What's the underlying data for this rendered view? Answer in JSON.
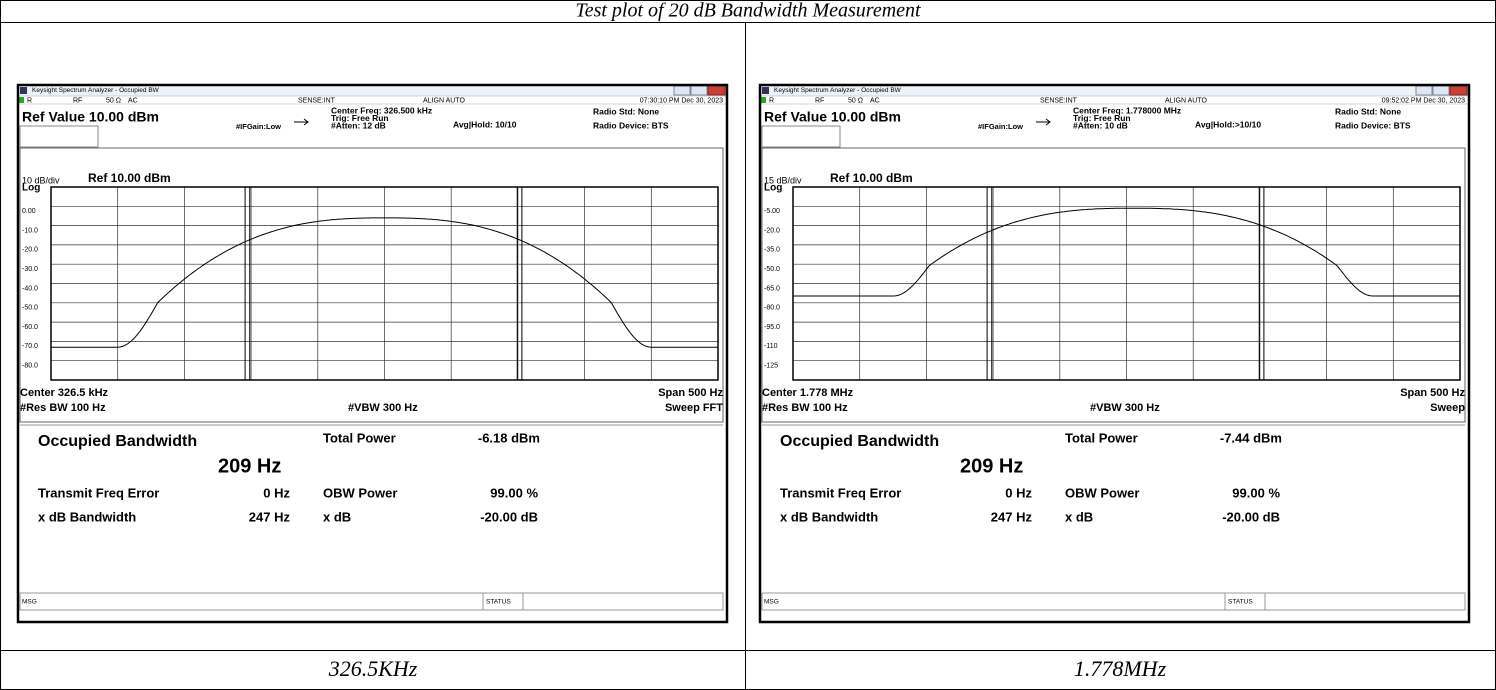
{
  "header": {
    "title": "Test plot of 20 dB Bandwidth Measurement"
  },
  "panels": [
    {
      "window_title": "Keysight Spectrum Analyzer - Occupied BW",
      "status": [
        "R",
        "RF",
        "50 Ω",
        "AC",
        "SENSE:INT",
        "ALIGN AUTO",
        "07:30:10 PM Dec 30, 2023"
      ],
      "ref_value": "Ref Value 10.00 dBm",
      "center_freq": "Center Freq: 326.500 kHz",
      "trig": "Trig: Free Run",
      "atten": "#Atten: 12 dB",
      "ifgain": "#IFGain:Low",
      "avg": "Avg|Hold: 10/10",
      "radio_std": "Radio Std: None",
      "radio_device": "Radio Device: BTS",
      "scale": "10 dB/div",
      "ref_level": "Ref 10.00 dBm",
      "log": "Log",
      "y_labels": [
        "0.00",
        "-10.0",
        "-20.0",
        "-30.0",
        "-40.0",
        "-50.0",
        "-60.0",
        "-70.0",
        "-80.0"
      ],
      "center": "Center 326.5 kHz",
      "span": "Span 500 Hz",
      "res_bw": "#Res BW 100 Hz",
      "vbw": "#VBW 300 Hz",
      "sweep": "Sweep FFT",
      "occupied_label": "Occupied Bandwidth",
      "occupied": "209 Hz",
      "total_power_label": "Total Power",
      "total_power": "-6.18 dBm",
      "tfe_label": "Transmit Freq Error",
      "tfe": "0 Hz",
      "obw_power_label": "OBW Power",
      "obw_power": "99.00 %",
      "xdb_bw_label": "x dB Bandwidth",
      "xdb_bw": "247 Hz",
      "xdb_label": "x dB",
      "xdb": "-20.00 dB",
      "msg": "MSG",
      "status_label": "STATUS"
    },
    {
      "window_title": "Keysight Spectrum Analyzer - Occupied BW",
      "status": [
        "R",
        "RF",
        "50 Ω",
        "AC",
        "SENSE:INT",
        "ALIGN AUTO",
        "09:52:02 PM Dec 30, 2023"
      ],
      "ref_value": "Ref Value 10.00 dBm",
      "center_freq": "Center Freq: 1.778000 MHz",
      "trig": "Trig: Free Run",
      "atten": "#Atten: 10 dB",
      "ifgain": "#IFGain:Low",
      "avg": "Avg|Hold:>10/10",
      "radio_std": "Radio Std: None",
      "radio_device": "Radio Device: BTS",
      "scale": "15 dB/div",
      "ref_level": "Ref 10.00 dBm",
      "log": "Log",
      "y_labels": [
        "-5.00",
        "-20.0",
        "-35.0",
        "-50.0",
        "-65.0",
        "-80.0",
        "-95.0",
        "-110",
        "-125"
      ],
      "center": "Center 1.778 MHz",
      "span": "Span 500 Hz",
      "res_bw": "#Res BW 100 Hz",
      "vbw": "#VBW 300 Hz",
      "sweep": "Sweep",
      "occupied_label": "Occupied Bandwidth",
      "occupied": "209 Hz",
      "total_power_label": "Total Power",
      "total_power": "-7.44 dBm",
      "tfe_label": "Transmit Freq Error",
      "tfe": "0 Hz",
      "obw_power_label": "OBW Power",
      "obw_power": "99.00 %",
      "xdb_bw_label": "x dB Bandwidth",
      "xdb_bw": "247 Hz",
      "xdb_label": "x dB",
      "xdb": "-20.00 dB",
      "msg": "MSG",
      "status_label": "STATUS"
    }
  ],
  "captions": [
    "326.5KHz",
    "1.778MHz"
  ]
}
